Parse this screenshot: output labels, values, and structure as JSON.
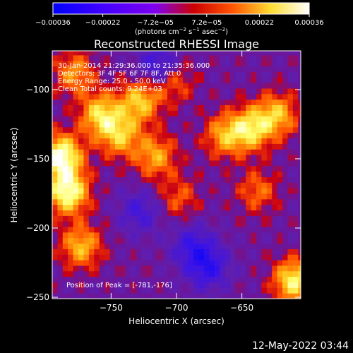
{
  "chart_data": {
    "type": "heatmap",
    "title": "Reconstructed RHESSI Image",
    "xlabel": "Heliocentric X (arcsec)",
    "ylabel": "Heliocentric Y (arcsec)",
    "xlim": [
      -795,
      -605
    ],
    "ylim": [
      -251,
      -72
    ],
    "x_ticks": [
      -750,
      -700,
      -650
    ],
    "x_tick_labels": [
      "−750",
      "−700",
      "−650"
    ],
    "y_ticks": [
      -100,
      -150,
      -200,
      -250
    ],
    "y_tick_labels": [
      "−100",
      "−150",
      "−200",
      "−250"
    ],
    "colorbar": {
      "min": -0.00036,
      "max": 0.00036,
      "ticks": [
        -0.00036,
        -0.00022,
        -7.2e-05,
        7.2e-05,
        0.00022,
        0.00036
      ],
      "tick_labels": [
        "−0.00036",
        "−0.00022",
        "−7.2e−05",
        "7.2e−05",
        "0.00022",
        "0.00036"
      ],
      "unit_text": "(photons cm",
      "unit_sup1": "−2",
      "unit_mid": " s",
      "unit_sup2": "−1",
      "unit_mid2": " asec",
      "unit_sup3": "−2",
      "unit_end": ")",
      "colors": [
        "#0000ff",
        "#7f00ff",
        "#cc0000",
        "#ff6600",
        "#ffff66",
        "#ffffff"
      ]
    },
    "annotations": [
      "30-Jan-2014 21:29:36.000 to 21:35:36.000",
      "Detectors: 3F 4F 5F 6F 7F 8F, Att 0",
      "Energy Range: 25.0 - 50.0 keV",
      "Clean     Total counts: 9.24E+03"
    ],
    "peak_label": "Position of Peak = [-781,-176]",
    "peak": [
      -781,
      -176
    ],
    "blobs": [
      {
        "x": -780,
        "y": -90,
        "v": 0.00018
      },
      {
        "x": -790,
        "y": -150,
        "v": 0.00036
      },
      {
        "x": -785,
        "y": -176,
        "v": 0.00034
      },
      {
        "x": -775,
        "y": -215,
        "v": 0.00022
      },
      {
        "x": -760,
        "y": -120,
        "v": 0.00026
      },
      {
        "x": -745,
        "y": -135,
        "v": 0.00022
      },
      {
        "x": -730,
        "y": -110,
        "v": 0.00024
      },
      {
        "x": -718,
        "y": -150,
        "v": 0.0002
      },
      {
        "x": -705,
        "y": -95,
        "v": 0.00016
      },
      {
        "x": -700,
        "y": -180,
        "v": 0.00012
      },
      {
        "x": -665,
        "y": -135,
        "v": 0.0002
      },
      {
        "x": -645,
        "y": -130,
        "v": 0.00026
      },
      {
        "x": -625,
        "y": -120,
        "v": 0.00022
      },
      {
        "x": -640,
        "y": -175,
        "v": 0.00014
      },
      {
        "x": -612,
        "y": -240,
        "v": 0.0003
      },
      {
        "x": -678,
        "y": -230,
        "v": -0.0002
      },
      {
        "x": -730,
        "y": -190,
        "v": -0.00014
      },
      {
        "x": -715,
        "y": -85,
        "v": -0.0002
      },
      {
        "x": -690,
        "y": -215,
        "v": -0.00016
      }
    ]
  },
  "footer": {
    "timestamp": "12-May-2022 03:44"
  }
}
